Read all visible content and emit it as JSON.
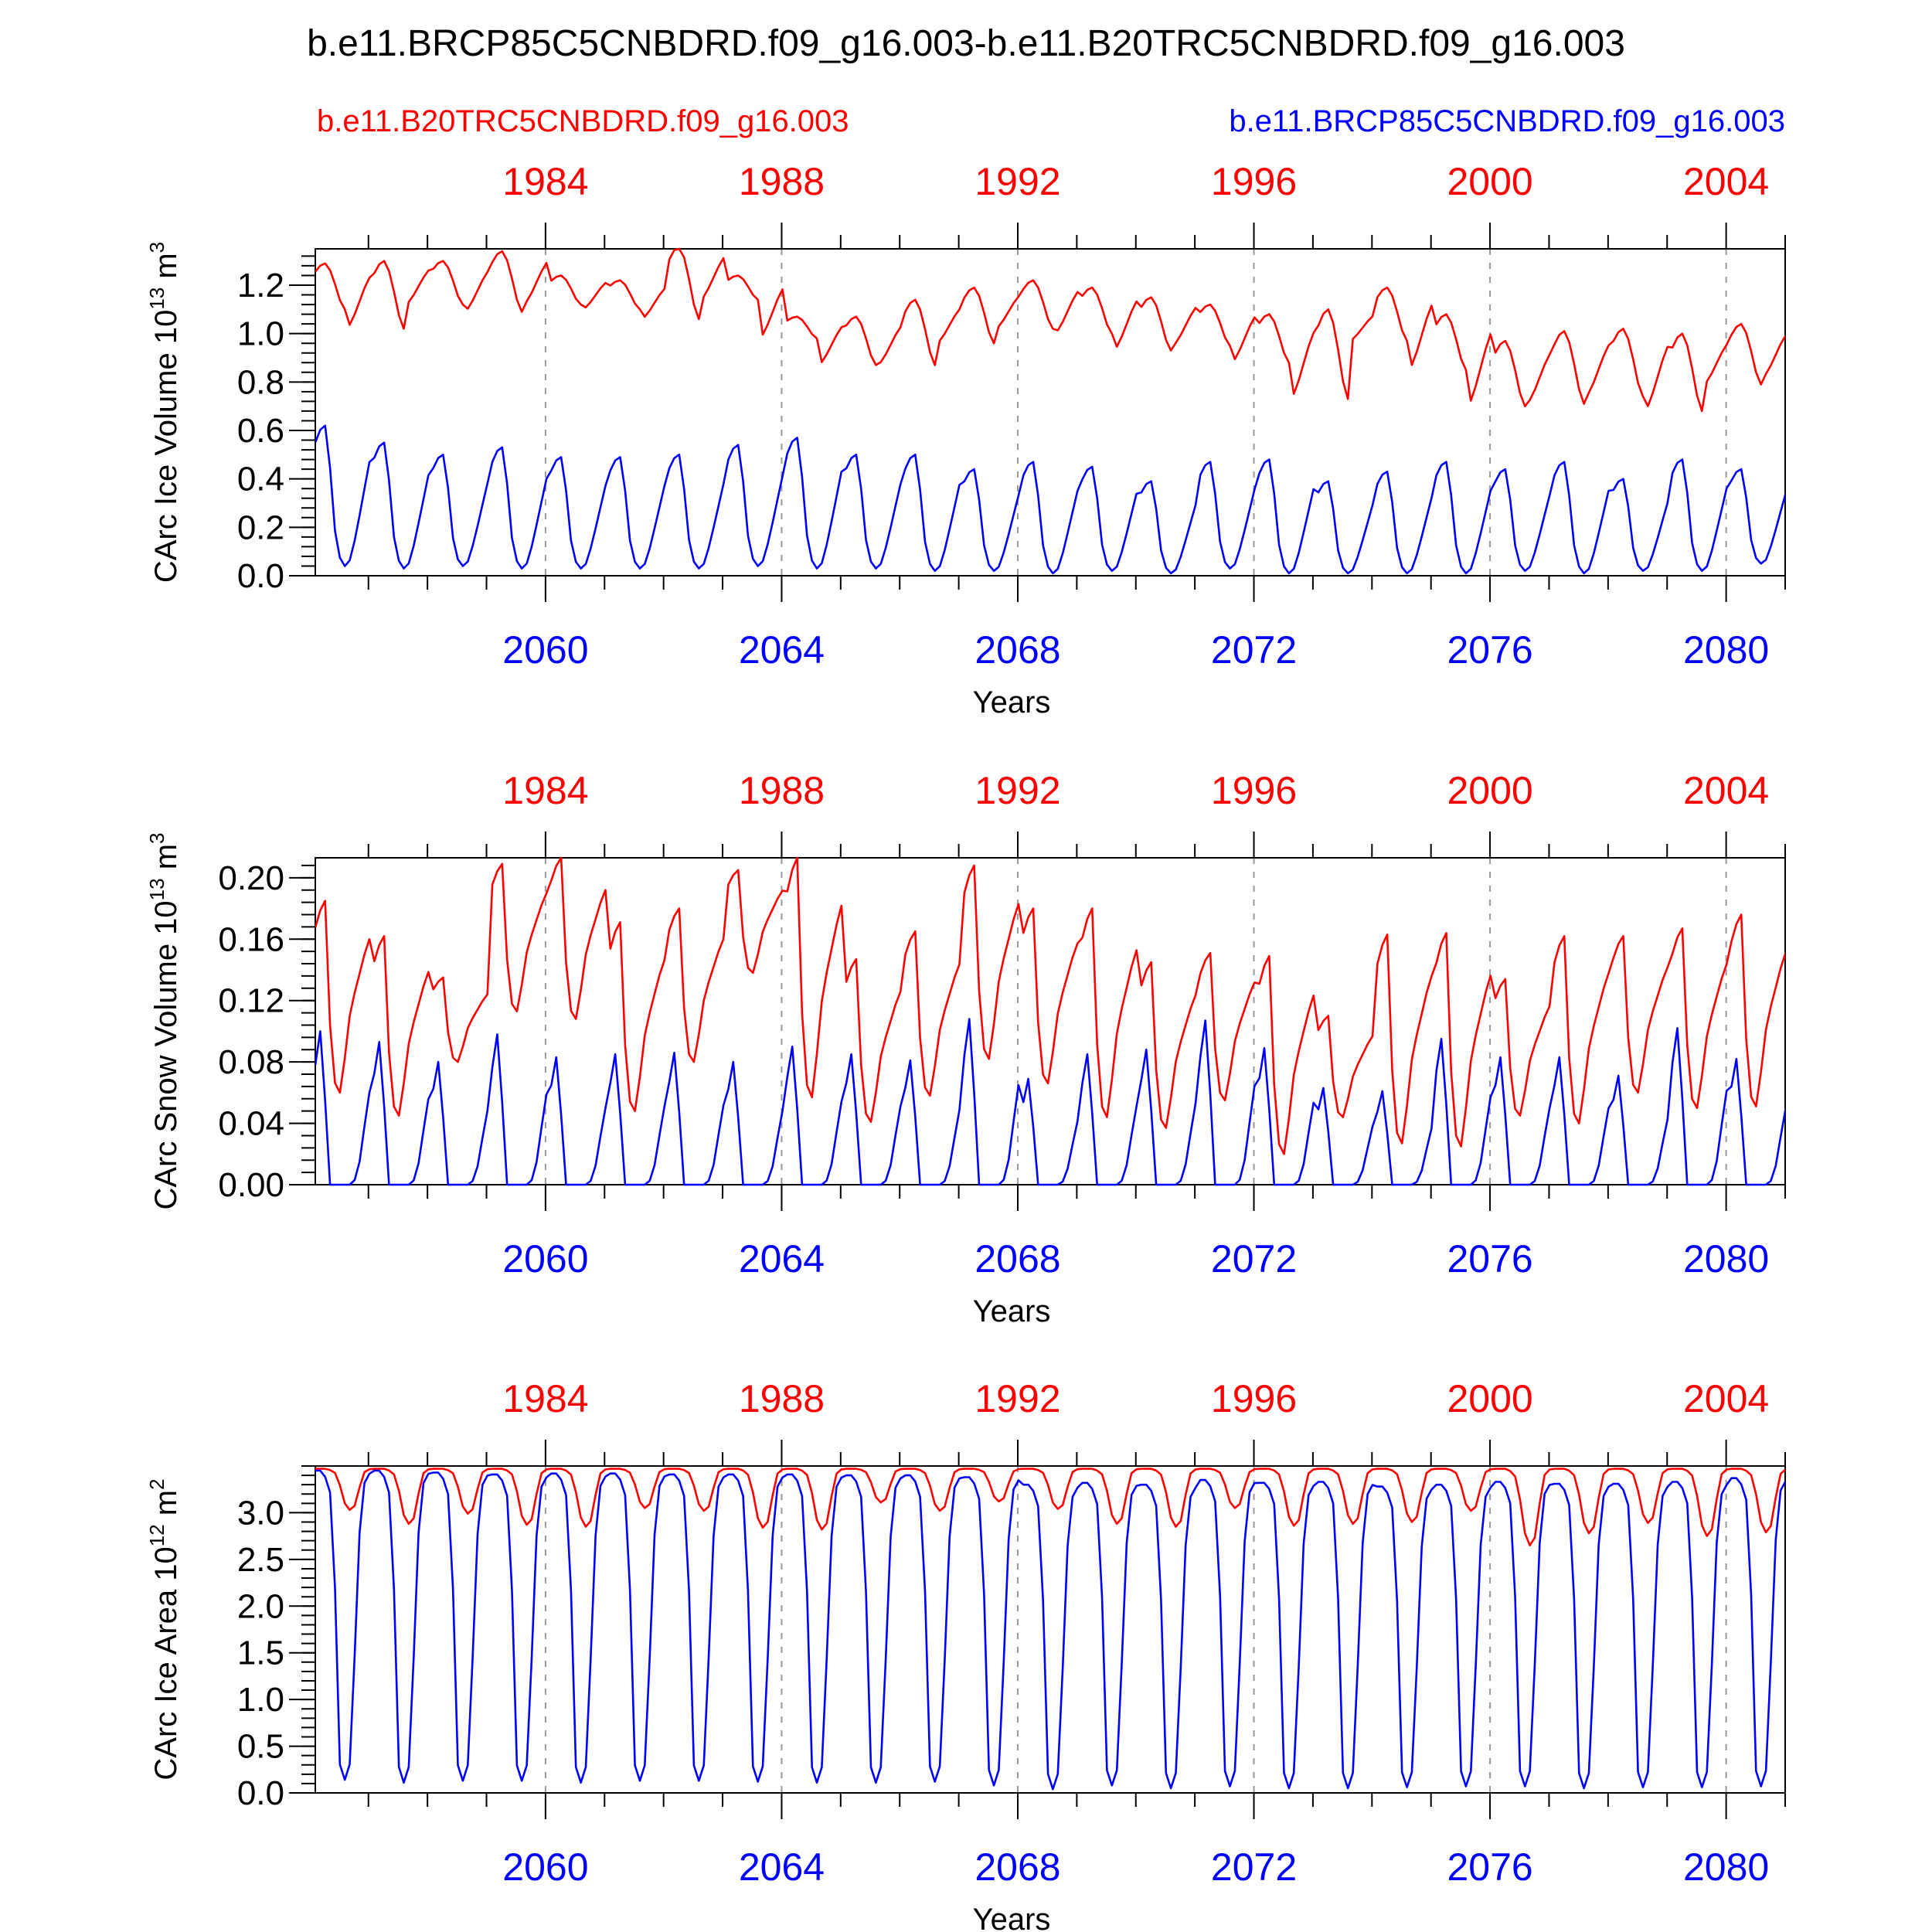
{
  "title": "b.e11.BRCP85C5CNBDRD.f09_g16.003-b.e11.B20TRC5CNBDRD.f09_g16.003",
  "colors": {
    "red_run": "#ff0000",
    "blue_run": "#0000ff",
    "axis": "#000000",
    "grid": "#999999"
  },
  "chart_data": [
    {
      "type": "line",
      "ylabel": {
        "prefix": "CArc Ice Volume 10",
        "exp": "13",
        "unit": " m",
        "unit_exp": "3"
      },
      "xlabel": "Years",
      "ylim": [
        0.0,
        1.35
      ],
      "yticks": [
        "0.0",
        "0.2",
        "0.4",
        "0.6",
        "0.8",
        "1.0",
        "1.2"
      ],
      "top_axis": {
        "labels": [
          "1984",
          "1988",
          "1992",
          "1996",
          "2000",
          "2004"
        ],
        "years": [
          1984,
          1988,
          1992,
          1996,
          2000,
          2004
        ],
        "xlim": [
          1980.1,
          2005.0
        ]
      },
      "bottom_axis": {
        "labels": [
          "2060",
          "2064",
          "2068",
          "2072",
          "2076",
          "2080"
        ],
        "years": [
          2060,
          2064,
          2068,
          2072,
          2076,
          2080
        ],
        "xlim": [
          2056.1,
          2081.0
        ]
      },
      "series": [
        {
          "name": "b.e11.B20TRC5CNBDRD.f09_g16.003",
          "axis": "top",
          "color": "#ff0000",
          "start": 1980.1,
          "step": 0.0833,
          "kind": "volume",
          "summer_min": [
            1.1,
            1.02,
            1.12,
            1.09,
            1.12,
            1.1,
            1.06,
            1.14,
            0.98,
            0.87,
            0.87,
            0.96,
            1.02,
            1.0,
            0.93,
            0.95,
            0.88,
            0.73,
            0.97,
            0.85,
            0.7,
            0.71,
            0.74,
            0.68,
            0.79,
            0.82
          ],
          "winter_max": [
            1.29,
            1.3,
            1.3,
            1.34,
            1.24,
            1.22,
            1.36,
            1.24,
            1.07,
            1.07,
            1.14,
            1.19,
            1.22,
            1.19,
            1.15,
            1.12,
            1.08,
            1.1,
            1.19,
            1.08,
            0.97,
            1.01,
            1.02,
            1.0,
            1.04,
            0.91
          ]
        },
        {
          "name": "b.e11.BRCP85C5CNBDRD.f09_g16.003",
          "axis": "bottom",
          "color": "#0000ff",
          "start": 2056.1,
          "step": 0.0833,
          "kind": "volume",
          "summer_min": [
            0.04,
            0.03,
            0.04,
            0.03,
            0.03,
            0.03,
            0.03,
            0.04,
            0.03,
            0.03,
            0.02,
            0.02,
            0.01,
            0.02,
            0.01,
            0.03,
            0.01,
            0.01,
            0.01,
            0.01,
            0.02,
            0.01,
            0.02,
            0.02,
            0.05,
            0.02
          ],
          "winter_max": [
            0.62,
            0.55,
            0.5,
            0.53,
            0.49,
            0.49,
            0.5,
            0.54,
            0.57,
            0.5,
            0.5,
            0.44,
            0.47,
            0.45,
            0.39,
            0.47,
            0.48,
            0.39,
            0.43,
            0.47,
            0.44,
            0.47,
            0.4,
            0.48,
            0.44,
            0.06
          ]
        }
      ]
    },
    {
      "type": "line",
      "ylabel": {
        "prefix": "CArc Snow Volume 10",
        "exp": "13",
        "unit": " m",
        "unit_exp": "3"
      },
      "xlabel": "Years",
      "ylim": [
        0.0,
        0.213
      ],
      "yticks": [
        "0.00",
        "0.04",
        "0.08",
        "0.12",
        "0.16",
        "0.20"
      ],
      "top_axis": {
        "labels": [
          "1984",
          "1988",
          "1992",
          "1996",
          "2000",
          "2004"
        ],
        "years": [
          1984,
          1988,
          1992,
          1996,
          2000,
          2004
        ],
        "xlim": [
          1980.1,
          2005.0
        ]
      },
      "bottom_axis": {
        "labels": [
          "2060",
          "2064",
          "2068",
          "2072",
          "2076",
          "2080"
        ],
        "years": [
          2060,
          2064,
          2068,
          2072,
          2076,
          2080
        ],
        "xlim": [
          2056.1,
          2081.0
        ]
      },
      "series": [
        {
          "name": "b.e11.B20TRC5CNBDRD.f09_g16.003",
          "axis": "top",
          "color": "#ff0000",
          "start": 1980.1,
          "step": 0.0833,
          "kind": "snow",
          "summer_min": [
            0.06,
            0.045,
            0.08,
            0.113,
            0.108,
            0.048,
            0.08,
            0.138,
            0.057,
            0.041,
            0.058,
            0.082,
            0.066,
            0.044,
            0.037,
            0.055,
            0.02,
            0.044,
            0.027,
            0.025,
            0.045,
            0.04,
            0.06,
            0.05,
            0.051,
            0.116
          ],
          "winter_max": [
            0.185,
            0.162,
            0.135,
            0.209,
            0.213,
            0.171,
            0.18,
            0.205,
            0.213,
            0.147,
            0.165,
            0.208,
            0.18,
            0.18,
            0.145,
            0.151,
            0.149,
            0.11,
            0.163,
            0.164,
            0.134,
            0.162,
            0.162,
            0.167,
            0.176,
            0.116
          ]
        },
        {
          "name": "b.e11.BRCP85C5CNBDRD.f09_g16.003",
          "axis": "bottom",
          "color": "#0000ff",
          "start": 2056.1,
          "step": 0.0833,
          "kind": "snow",
          "summer_min": [
            0.0,
            0.0,
            0.0,
            0.0,
            0.0,
            0.0,
            0.0,
            0.0,
            0.0,
            0.0,
            0.0,
            0.0,
            0.0,
            0.0,
            0.0,
            0.0,
            0.0,
            0.0,
            0.0,
            0.0,
            0.0,
            0.0,
            0.0,
            0.0,
            0.0,
            0.0
          ],
          "winter_max": [
            0.1,
            0.093,
            0.08,
            0.098,
            0.083,
            0.085,
            0.086,
            0.08,
            0.09,
            0.085,
            0.081,
            0.108,
            0.069,
            0.085,
            0.088,
            0.107,
            0.089,
            0.063,
            0.061,
            0.095,
            0.083,
            0.083,
            0.071,
            0.102,
            0.082,
            0.01
          ]
        }
      ]
    },
    {
      "type": "line",
      "ylabel": {
        "prefix": "CArc Ice Area 10",
        "exp": "12",
        "unit": " m",
        "unit_exp": "2"
      },
      "xlabel": "Years",
      "ylim": [
        0.0,
        3.5
      ],
      "yticks": [
        "0.0",
        "0.5",
        "1.0",
        "1.5",
        "2.0",
        "2.5",
        "3.0"
      ],
      "top_axis": {
        "labels": [
          "1984",
          "1988",
          "1992",
          "1996",
          "2000",
          "2004"
        ],
        "years": [
          1984,
          1988,
          1992,
          1996,
          2000,
          2004
        ],
        "xlim": [
          1980.1,
          2005.0
        ]
      },
      "bottom_axis": {
        "labels": [
          "2060",
          "2064",
          "2068",
          "2072",
          "2076",
          "2080"
        ],
        "years": [
          2060,
          2064,
          2068,
          2072,
          2076,
          2080
        ],
        "xlim": [
          2056.1,
          2081.0
        ]
      },
      "series": [
        {
          "name": "b.e11.B20TRC5CNBDRD.f09_g16.003",
          "axis": "top",
          "color": "#ff0000",
          "start": 1980.1,
          "step": 0.0833,
          "kind": "area",
          "summer_min": [
            3.03,
            2.88,
            2.99,
            2.87,
            2.85,
            3.05,
            3.02,
            2.84,
            2.82,
            3.11,
            3.02,
            3.12,
            3.04,
            2.88,
            2.85,
            3.05,
            2.86,
            2.88,
            2.9,
            3.02,
            2.65,
            2.78,
            2.89,
            2.75,
            2.79,
            2.94
          ],
          "winter_max": [
            3.47,
            3.47,
            3.47,
            3.47,
            3.47,
            3.47,
            3.47,
            3.47,
            3.47,
            3.47,
            3.47,
            3.47,
            3.47,
            3.47,
            3.47,
            3.47,
            3.47,
            3.47,
            3.47,
            3.47,
            3.47,
            3.47,
            3.47,
            3.47,
            3.47,
            3.47
          ]
        },
        {
          "name": "b.e11.BRCP85C5CNBDRD.f09_g16.003",
          "axis": "bottom",
          "color": "#0000ff",
          "start": 2056.1,
          "step": 0.0833,
          "kind": "area",
          "summer_min": [
            0.14,
            0.11,
            0.13,
            0.13,
            0.11,
            0.13,
            0.13,
            0.12,
            0.11,
            0.11,
            0.12,
            0.08,
            0.04,
            0.08,
            0.05,
            0.07,
            0.05,
            0.05,
            0.06,
            0.07,
            0.07,
            0.05,
            0.06,
            0.06,
            0.07,
            1.48
          ],
          "winter_max": [
            3.45,
            3.45,
            3.43,
            3.41,
            3.42,
            3.42,
            3.41,
            3.41,
            3.41,
            3.4,
            3.4,
            3.38,
            3.3,
            3.32,
            3.3,
            3.35,
            3.32,
            3.33,
            3.28,
            3.3,
            3.33,
            3.31,
            3.31,
            3.33,
            3.37,
            3.37
          ]
        }
      ]
    }
  ]
}
